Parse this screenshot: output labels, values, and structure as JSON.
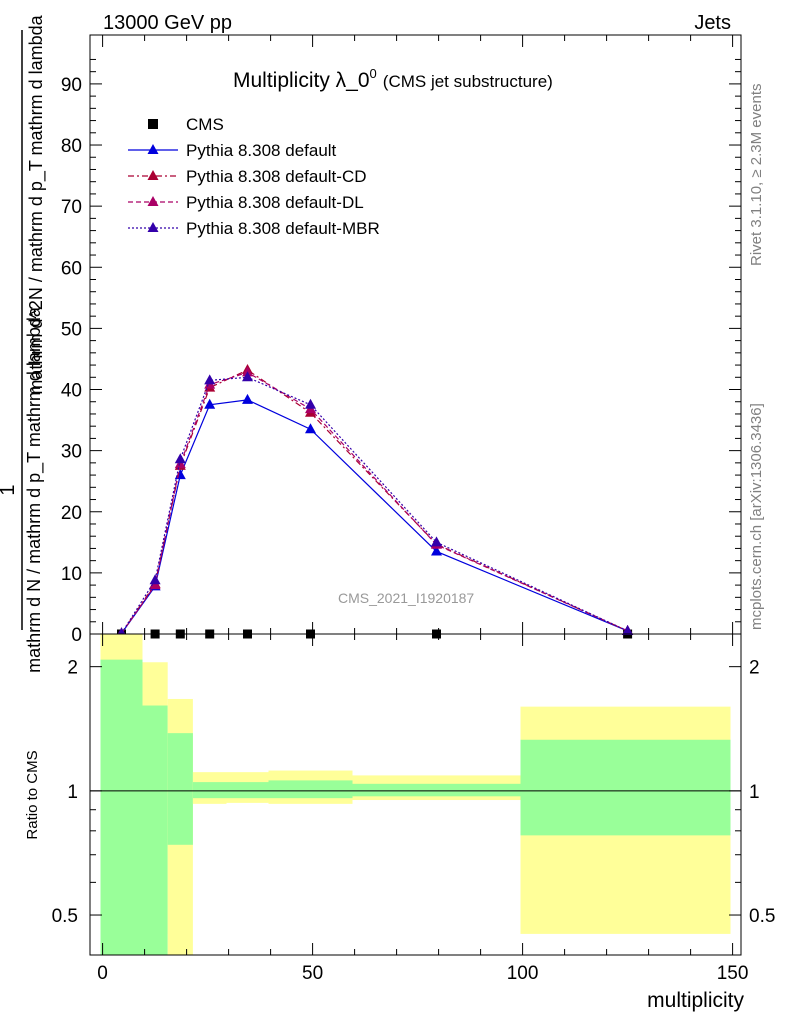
{
  "header": {
    "energy_label": "13000 GeV pp",
    "process_label": "Jets"
  },
  "side_text": {
    "rivet": "Rivet 3.1.10, ≥ 2.3M events",
    "mcplots": "mcplots.cern.ch [arXiv:1306.3436]"
  },
  "colors": {
    "cms": "#000000",
    "default": "#0000dd",
    "default_cd": "#aa0033",
    "default_dl": "#aa0066",
    "default_mbr": "#3300aa",
    "band_inner": "#99ff99",
    "band_outer": "#ffff99"
  },
  "chart_data": [
    {
      "type": "line",
      "title": "Multiplicity λ_0",
      "title_sup": "0",
      "subtitle": "(CMS jet substructure)",
      "watermark": "CMS_2021_I1920187",
      "ylabel_num": "1",
      "ylabel_den": "mathrm d N / mathrm d p_T mathrm d lambda",
      "ylabel_dnum": "mathrm d^2N / mathrm d p_T mathrm d lambda",
      "ylim": [
        0,
        98
      ],
      "xlim": [
        -3,
        152
      ],
      "y_ticks": [
        0,
        10,
        20,
        30,
        40,
        50,
        60,
        70,
        80,
        90
      ],
      "legend_position": "top-left",
      "series": [
        {
          "name": "CMS",
          "style": "marker-square",
          "x": [
            4.5,
            12.5,
            18.5,
            25.5,
            34.5,
            49.5,
            79.5,
            125
          ],
          "y": [
            0,
            0,
            0,
            0,
            0,
            0,
            0,
            0
          ]
        },
        {
          "name": "Pythia 8.308 default",
          "style": "solid",
          "x": [
            4.5,
            12.5,
            18.5,
            25.5,
            34.5,
            49.5,
            79.5,
            125
          ],
          "y": [
            0.1,
            7.8,
            26.0,
            37.5,
            38.3,
            33.5,
            13.5,
            0.5
          ]
        },
        {
          "name": "Pythia 8.308 default-CD",
          "style": "dashdot",
          "x": [
            4.5,
            12.5,
            18.5,
            25.5,
            34.5,
            49.5,
            79.5,
            125
          ],
          "y": [
            0.1,
            8.2,
            27.5,
            40.3,
            43.2,
            36.2,
            14.7,
            0.5
          ]
        },
        {
          "name": "Pythia 8.308 default-DL",
          "style": "dashed",
          "x": [
            4.5,
            12.5,
            18.5,
            25.5,
            34.5,
            49.5,
            79.5,
            125
          ],
          "y": [
            0.1,
            8.0,
            27.8,
            40.8,
            42.8,
            36.8,
            14.6,
            0.5
          ]
        },
        {
          "name": "Pythia 8.308 default-MBR",
          "style": "dotted",
          "x": [
            4.5,
            12.5,
            18.5,
            25.5,
            34.5,
            49.5,
            79.5,
            125
          ],
          "y": [
            0.1,
            8.8,
            28.6,
            41.5,
            42.0,
            37.5,
            15.0,
            0.5
          ]
        }
      ]
    },
    {
      "type": "area",
      "ylabel": "Ratio to CMS",
      "xlabel": "multiplicity",
      "yscale": "log",
      "ylim": [
        0.4,
        2.4
      ],
      "xlim": [
        -3,
        152
      ],
      "x_ticks": [
        0,
        50,
        100,
        150
      ],
      "y_ticks": [
        0.5,
        1,
        2
      ],
      "bins": [
        {
          "x": [
            -0.5,
            9.5
          ],
          "inner": [
            0.3,
            2.08
          ],
          "outer": [
            0.3,
            2.5
          ]
        },
        {
          "x": [
            9.5,
            15.5
          ],
          "inner": [
            0.3,
            1.61
          ],
          "outer": [
            0.45,
            2.05
          ]
        },
        {
          "x": [
            15.5,
            21.5
          ],
          "inner": [
            0.74,
            1.38
          ],
          "outer": [
            0.3,
            1.67
          ]
        },
        {
          "x": [
            21.5,
            29.5
          ],
          "inner": [
            0.96,
            1.05
          ],
          "outer": [
            0.93,
            1.11
          ]
        },
        {
          "x": [
            29.5,
            39.5
          ],
          "inner": [
            0.96,
            1.05
          ],
          "outer": [
            0.935,
            1.11
          ]
        },
        {
          "x": [
            39.5,
            59.5
          ],
          "inner": [
            0.96,
            1.06
          ],
          "outer": [
            0.93,
            1.12
          ]
        },
        {
          "x": [
            59.5,
            99.5
          ],
          "inner": [
            0.97,
            1.04
          ],
          "outer": [
            0.95,
            1.09
          ]
        },
        {
          "x": [
            99.5,
            149.5
          ],
          "inner": [
            0.78,
            1.33
          ],
          "outer": [
            0.45,
            1.6
          ]
        }
      ]
    }
  ]
}
